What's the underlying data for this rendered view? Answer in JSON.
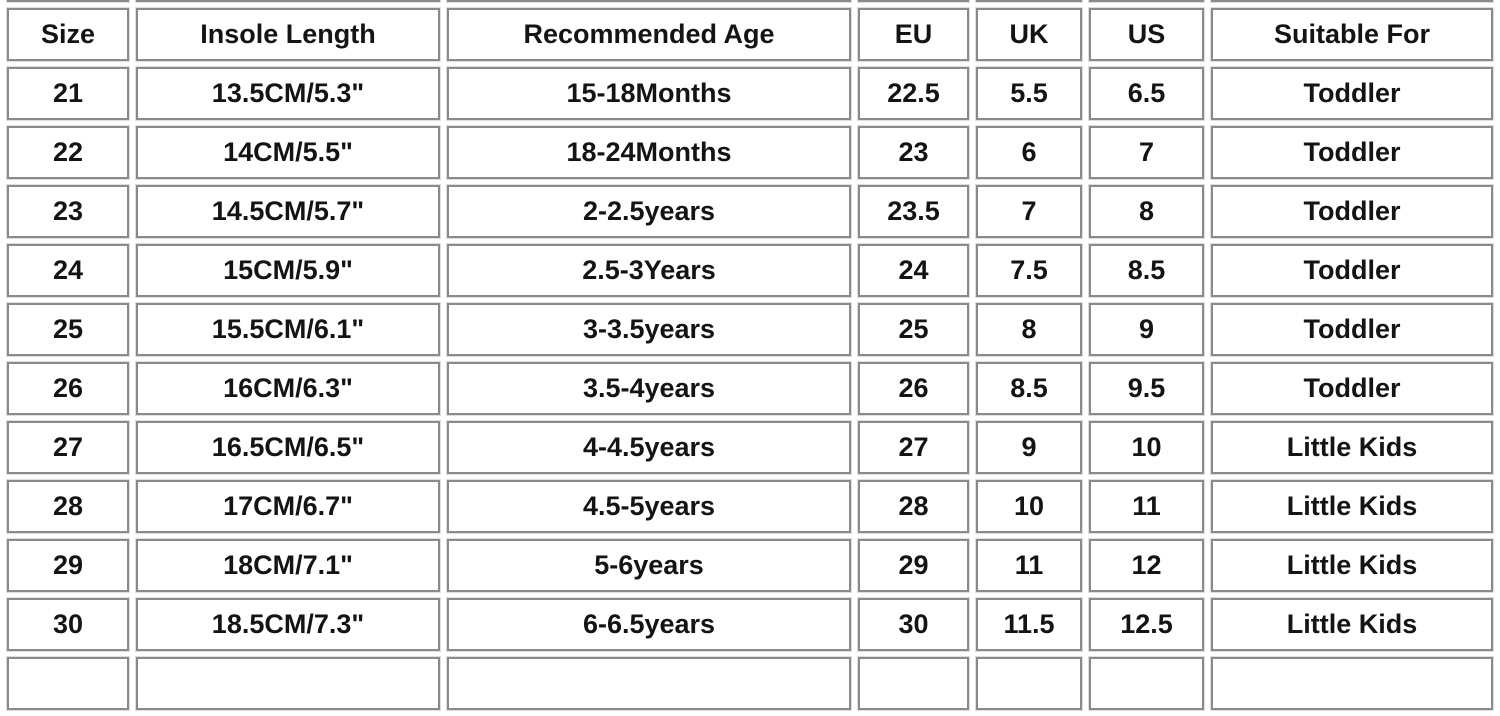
{
  "chart_data": {
    "type": "table",
    "columns": [
      "Size",
      "Insole Length",
      "Recommended Age",
      "EU",
      "UK",
      "US",
      "Suitable For"
    ],
    "rows": [
      [
        "21",
        "13.5CM/5.3\"",
        "15-18Months",
        "22.5",
        "5.5",
        "6.5",
        "Toddler"
      ],
      [
        "22",
        "14CM/5.5\"",
        "18-24Months",
        "23",
        "6",
        "7",
        "Toddler"
      ],
      [
        "23",
        "14.5CM/5.7\"",
        "2-2.5years",
        "23.5",
        "7",
        "8",
        "Toddler"
      ],
      [
        "24",
        "15CM/5.9\"",
        "2.5-3Years",
        "24",
        "7.5",
        "8.5",
        "Toddler"
      ],
      [
        "25",
        "15.5CM/6.1\"",
        "3-3.5years",
        "25",
        "8",
        "9",
        "Toddler"
      ],
      [
        "26",
        "16CM/6.3\"",
        "3.5-4years",
        "26",
        "8.5",
        "9.5",
        "Toddler"
      ],
      [
        "27",
        "16.5CM/6.5\"",
        "4-4.5years",
        "27",
        "9",
        "10",
        "Little Kids"
      ],
      [
        "28",
        "17CM/6.7\"",
        "4.5-5years",
        "28",
        "10",
        "11",
        "Little Kids"
      ],
      [
        "29",
        "18CM/7.1\"",
        "5-6years",
        "29",
        "11",
        "12",
        "Little Kids"
      ],
      [
        "30",
        "18.5CM/7.3\"",
        "6-6.5years",
        "30",
        "11.5",
        "12.5",
        "Little Kids"
      ]
    ],
    "title": "",
    "legend": "none",
    "grid": "cell-borders"
  },
  "colors": {
    "border": "#8a8a8a",
    "text": "#141414",
    "background": "#ffffff",
    "cell_background": "#ffffff"
  }
}
